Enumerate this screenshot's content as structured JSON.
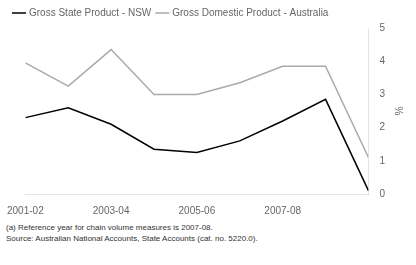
{
  "chart_data": {
    "type": "line",
    "x": [
      0,
      1,
      2,
      3,
      4,
      5,
      6,
      7,
      8
    ],
    "series": [
      {
        "name": "Gross State Product - NSW",
        "color": "#000000",
        "values": [
          2.3,
          2.6,
          2.1,
          1.35,
          1.25,
          1.6,
          2.2,
          2.85,
          0.1
        ]
      },
      {
        "name": "Gross Domestic Product - Australia",
        "color": "#aaaaaa",
        "values": [
          3.95,
          3.25,
          4.35,
          3.0,
          3.0,
          3.35,
          3.85,
          3.85,
          1.1
        ]
      }
    ],
    "xlim": [
      0,
      8
    ],
    "xticks": [
      {
        "value": 0,
        "label": "2001-02"
      },
      {
        "value": 2,
        "label": "2003-04"
      },
      {
        "value": 4,
        "label": "2005-06"
      },
      {
        "value": 6,
        "label": "2007-08"
      }
    ],
    "y_label": "%",
    "ylim": [
      0,
      5
    ],
    "yticks": [
      0,
      1,
      2,
      3,
      4,
      5
    ],
    "annotations": [
      "(a) Reference year for chain volume measures is 2007-08.",
      "Source: Australian National Accounts, State Accounts (cat. no. 5220.0)."
    ],
    "legend": "upper left",
    "grid": false
  }
}
